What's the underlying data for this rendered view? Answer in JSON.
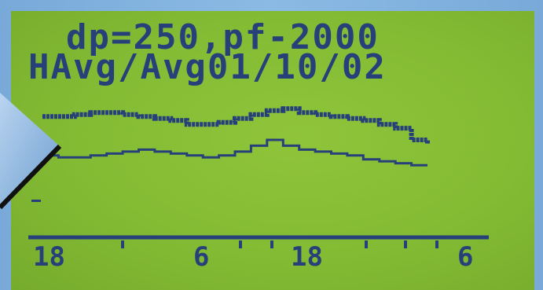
{
  "display": {
    "line1": "dp=250,pf-2000",
    "line2": "HAvg/Avg01/10/02"
  },
  "chart_data": {
    "type": "line",
    "x_tick_labels": [
      "18",
      "6",
      "18",
      "6"
    ],
    "series": [
      {
        "values": [
          62,
          62,
          63,
          64,
          64,
          63,
          62,
          61,
          60,
          58,
          58,
          59,
          61,
          63,
          65,
          66,
          64,
          63,
          62,
          61,
          60,
          58,
          56,
          50,
          48
        ]
      },
      {
        "values": [
          42,
          41,
          41,
          42,
          43,
          44,
          45,
          44,
          43,
          42,
          41,
          42,
          44,
          47,
          50,
          47,
          45,
          44,
          43,
          42,
          40,
          39,
          38,
          37,
          37
        ]
      }
    ],
    "ylim": [
      0,
      100
    ],
    "colors": {
      "trace": "#27407a",
      "screen": "#86bd35"
    }
  }
}
